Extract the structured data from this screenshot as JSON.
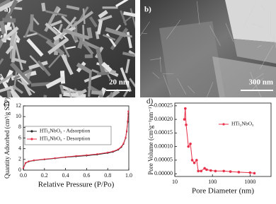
{
  "panels": [
    {
      "label": "a)",
      "scale_bar": "20 nm"
    },
    {
      "label": "b)",
      "scale_bar": "300 nm"
    }
  ],
  "chart_data": [
    {
      "type": "line",
      "panel_label": "c)",
      "x_label": "Relative Pressure (P/Po)",
      "y_label": "Quantity Adsorbed (cm³/g STP)",
      "x": [
        0.0,
        0.02,
        0.05,
        0.1,
        0.2,
        0.3,
        0.4,
        0.5,
        0.6,
        0.7,
        0.8,
        0.85,
        0.9,
        0.93,
        0.95,
        0.97,
        0.98,
        0.99,
        0.995
      ],
      "series": [
        {
          "name": "HTi₂NbO₅ - Adsorption",
          "color": "#222222",
          "values": [
            0.3,
            1.3,
            1.6,
            1.8,
            2.0,
            2.2,
            2.4,
            2.55,
            2.7,
            2.9,
            3.2,
            3.4,
            3.8,
            4.3,
            4.9,
            6.0,
            7.2,
            9.0,
            10.5
          ]
        },
        {
          "name": "HTi₂NbO₅ - Desorption",
          "color": "#e8314a",
          "values": [
            0.4,
            1.35,
            1.65,
            1.85,
            2.05,
            2.25,
            2.45,
            2.65,
            2.8,
            3.0,
            3.3,
            3.5,
            3.9,
            4.4,
            5.0,
            6.1,
            7.3,
            9.2,
            11.0
          ]
        }
      ],
      "xlim": [
        0.0,
        1.0
      ],
      "xticks": [
        {
          "value": 0,
          "label": "0.0"
        },
        0.2,
        0.4,
        0.6,
        0.8,
        {
          "value": 1,
          "label": "1.0"
        }
      ],
      "ylim": [
        0,
        12
      ],
      "yticks": [
        0,
        2,
        4,
        6,
        8,
        10,
        12
      ],
      "legend": "upper-left"
    },
    {
      "type": "line",
      "panel_label": "d)",
      "x_label": "Pore Diameter (nm)",
      "y_label": "Pore Volume (cm³g⁻¹nm⁻¹)",
      "x": [
        18,
        19,
        20,
        23,
        26,
        29,
        33,
        38,
        42,
        50,
        62,
        70,
        90,
        120,
        200,
        300,
        500,
        1000,
        1300
      ],
      "series": [
        {
          "name": "HTi₂NbO₅",
          "color": "#e8314a",
          "values": [
            0.0002,
            0.00024,
            0.00018,
            0.0001,
            0.00011,
            5e-05,
            4e-05,
            5e-05,
            1e-05,
            1e-05,
            2e-05,
            1.5e-05,
            1.2e-05,
            1e-05,
            1e-05,
            8e-06,
            6e-06,
            4e-06,
            2e-06
          ]
        }
      ],
      "xlim": [
        10,
        3600
      ],
      "xticks": [
        10,
        100,
        1000
      ],
      "xscale": "log",
      "ylim": [
        -1e-05,
        0.00026
      ],
      "yticks": [
        {
          "value": 0,
          "label": "0.00000"
        },
        {
          "value": 5e-05,
          "label": "0.00005"
        },
        {
          "value": 0.0001,
          "label": "0.00010"
        },
        {
          "value": 0.00015,
          "label": "0.00015"
        },
        {
          "value": 0.0002,
          "label": "0.00020"
        },
        {
          "value": 0.00025,
          "label": "0.00025"
        }
      ],
      "legend": "upper-right"
    }
  ]
}
